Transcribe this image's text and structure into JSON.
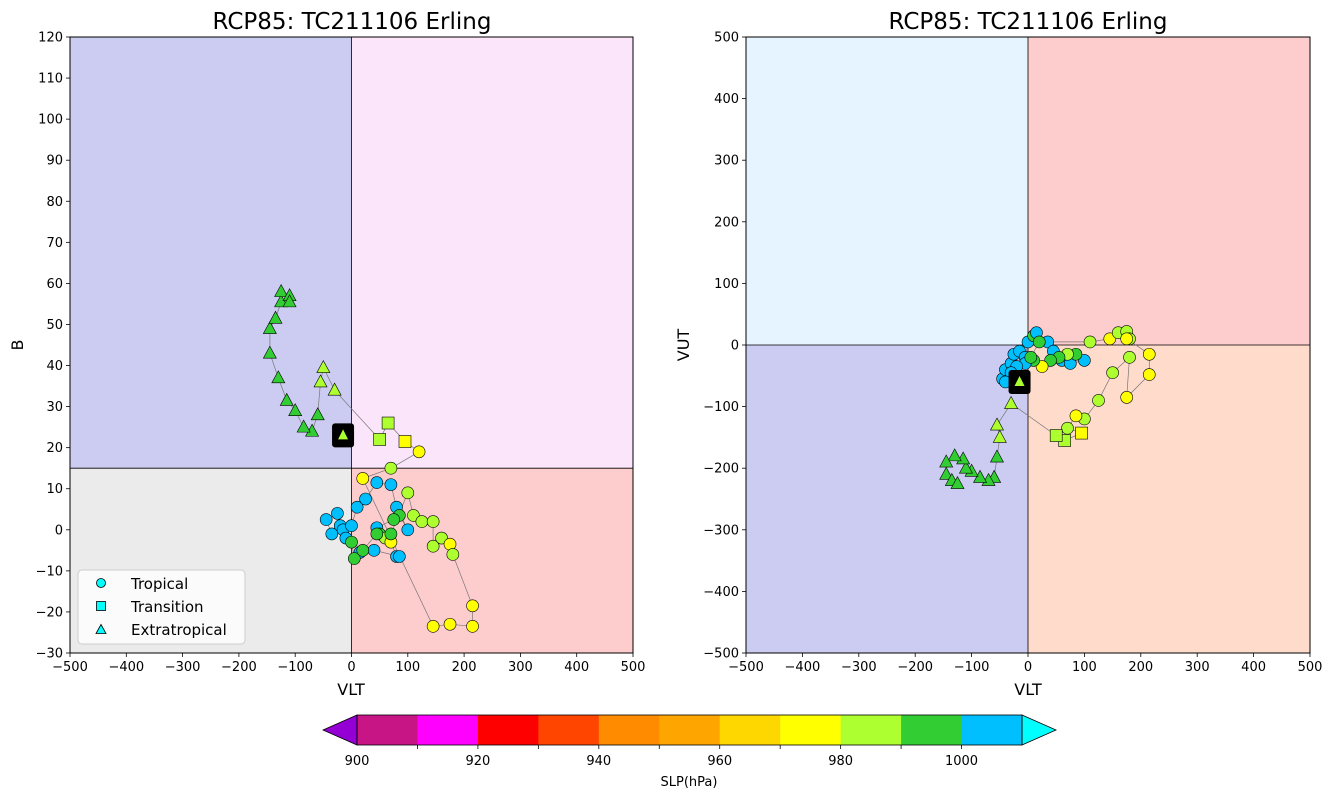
{
  "colorbar": {
    "label": "SLP(hPa)",
    "levels": [
      900,
      910,
      920,
      930,
      940,
      950,
      960,
      970,
      980,
      990,
      1000,
      1010
    ],
    "colors": [
      "#c71585",
      "#ff00ff",
      "#ff0000",
      "#ff4500",
      "#ff8c00",
      "#ffa500",
      "#ffd700",
      "#ffff00",
      "#adff2f",
      "#32cd32",
      "#00bfff"
    ],
    "under_color": "#9400d3",
    "over_color": "#00ffff",
    "tick_labels": [
      "900",
      "920",
      "940",
      "960",
      "980",
      "1000"
    ],
    "tick_values": [
      900,
      920,
      940,
      960,
      980,
      1000
    ]
  },
  "marker": {
    "label_color": "#adff2f"
  },
  "chart_data": [
    {
      "type": "scatter",
      "title": "RCP85: TC211106 Erling",
      "xlabel": "VLT",
      "ylabel": "B",
      "xlim": [
        -500,
        500
      ],
      "ylim": [
        -30,
        120
      ],
      "xticks": [
        -500,
        -400,
        -300,
        -200,
        -100,
        0,
        100,
        200,
        300,
        400,
        500
      ],
      "yticks": [
        -30,
        -20,
        -10,
        0,
        10,
        20,
        30,
        40,
        50,
        60,
        70,
        80,
        90,
        100,
        110,
        120
      ],
      "split": {
        "x": 0,
        "y": 15
      },
      "quadrants": {
        "upper_left": "#ccccf2",
        "upper_right": "#fbe5fa",
        "lower_left": "#ebebeb",
        "lower_right": "#fdcccc"
      },
      "grid": false,
      "legend": {
        "position": "lower-left",
        "entries": [
          {
            "label": "Tropical",
            "marker": "circle"
          },
          {
            "label": "Transition",
            "marker": "square"
          },
          {
            "label": "Extratropical",
            "marker": "triangle"
          }
        ]
      },
      "current_point": {
        "x": -15,
        "y": 23
      },
      "track": [
        {
          "x": -45,
          "y": 2.5,
          "slp": 1002,
          "phase": "tropical"
        },
        {
          "x": -35,
          "y": -1,
          "slp": 1002,
          "phase": "tropical"
        },
        {
          "x": -20,
          "y": 1,
          "slp": 1002,
          "phase": "tropical"
        },
        {
          "x": -25,
          "y": 4,
          "slp": 1002,
          "phase": "tropical"
        },
        {
          "x": -15,
          "y": 0,
          "slp": 1002,
          "phase": "tropical"
        },
        {
          "x": -10,
          "y": -2,
          "slp": 1001,
          "phase": "tropical"
        },
        {
          "x": 0,
          "y": 1,
          "slp": 1001,
          "phase": "tropical"
        },
        {
          "x": 10,
          "y": 5.5,
          "slp": 1001,
          "phase": "tropical"
        },
        {
          "x": 25,
          "y": 7.5,
          "slp": 1001,
          "phase": "tropical"
        },
        {
          "x": 45,
          "y": 11.5,
          "slp": 1001,
          "phase": "tropical"
        },
        {
          "x": 70,
          "y": 11,
          "slp": 1001,
          "phase": "tropical"
        },
        {
          "x": 80,
          "y": 5.5,
          "slp": 1001,
          "phase": "tropical"
        },
        {
          "x": 100,
          "y": 0,
          "slp": 1001,
          "phase": "tropical"
        },
        {
          "x": 85,
          "y": 3.5,
          "slp": 995,
          "phase": "tropical"
        },
        {
          "x": 75,
          "y": 2.5,
          "slp": 995,
          "phase": "tropical"
        },
        {
          "x": 45,
          "y": 0.5,
          "slp": 1001,
          "phase": "tropical"
        },
        {
          "x": 50,
          "y": -1,
          "slp": 995,
          "phase": "tropical"
        },
        {
          "x": 60,
          "y": -2,
          "slp": 985,
          "phase": "tropical"
        },
        {
          "x": 70,
          "y": -3,
          "slp": 975,
          "phase": "tropical"
        },
        {
          "x": 80,
          "y": -6.5,
          "slp": 1001,
          "phase": "tropical"
        },
        {
          "x": 85,
          "y": -6.5,
          "slp": 1001,
          "phase": "tropical"
        },
        {
          "x": 40,
          "y": -5,
          "slp": 1001,
          "phase": "tropical"
        },
        {
          "x": 15,
          "y": -5.5,
          "slp": 1001,
          "phase": "tropical"
        },
        {
          "x": 5,
          "y": -7,
          "slp": 995,
          "phase": "tropical"
        },
        {
          "x": 0,
          "y": -3,
          "slp": 995,
          "phase": "tropical"
        },
        {
          "x": 20,
          "y": -5,
          "slp": 995,
          "phase": "tropical"
        },
        {
          "x": 45,
          "y": -1,
          "slp": 995,
          "phase": "tropical"
        },
        {
          "x": 70,
          "y": -1,
          "slp": 995,
          "phase": "tropical"
        },
        {
          "x": 100,
          "y": 9,
          "slp": 985,
          "phase": "tropical"
        },
        {
          "x": 110,
          "y": 3.5,
          "slp": 985,
          "phase": "tropical"
        },
        {
          "x": 125,
          "y": 2,
          "slp": 985,
          "phase": "tropical"
        },
        {
          "x": 145,
          "y": 2,
          "slp": 985,
          "phase": "tropical"
        },
        {
          "x": 145,
          "y": -4,
          "slp": 985,
          "phase": "tropical"
        },
        {
          "x": 160,
          "y": -2,
          "slp": 985,
          "phase": "tropical"
        },
        {
          "x": 175,
          "y": -3.5,
          "slp": 975,
          "phase": "tropical"
        },
        {
          "x": 180,
          "y": -6,
          "slp": 985,
          "phase": "tropical"
        },
        {
          "x": 215,
          "y": -18.5,
          "slp": 975,
          "phase": "tropical"
        },
        {
          "x": 215,
          "y": -23.5,
          "slp": 975,
          "phase": "tropical"
        },
        {
          "x": 175,
          "y": -23,
          "slp": 975,
          "phase": "tropical"
        },
        {
          "x": 145,
          "y": -23.5,
          "slp": 975,
          "phase": "tropical"
        },
        {
          "x": 20,
          "y": 12.5,
          "slp": 975,
          "phase": "tropical"
        },
        {
          "x": 70,
          "y": 15,
          "slp": 985,
          "phase": "tropical"
        },
        {
          "x": 120,
          "y": 19,
          "slp": 975,
          "phase": "tropical"
        },
        {
          "x": 95,
          "y": 21.5,
          "slp": 975,
          "phase": "transition"
        },
        {
          "x": 65,
          "y": 26,
          "slp": 985,
          "phase": "transition"
        },
        {
          "x": 50,
          "y": 22,
          "slp": 985,
          "phase": "transition"
        },
        {
          "x": -30,
          "y": 34,
          "slp": 985,
          "phase": "extratropical"
        },
        {
          "x": -50,
          "y": 39.5,
          "slp": 985,
          "phase": "extratropical"
        },
        {
          "x": -55,
          "y": 36,
          "slp": 985,
          "phase": "extratropical"
        },
        {
          "x": -60,
          "y": 28,
          "slp": 995,
          "phase": "extratropical"
        },
        {
          "x": -70,
          "y": 24,
          "slp": 995,
          "phase": "extratropical"
        },
        {
          "x": -85,
          "y": 25,
          "slp": 995,
          "phase": "extratropical"
        },
        {
          "x": -100,
          "y": 29,
          "slp": 995,
          "phase": "extratropical"
        },
        {
          "x": -115,
          "y": 31.5,
          "slp": 995,
          "phase": "extratropical"
        },
        {
          "x": -130,
          "y": 37,
          "slp": 995,
          "phase": "extratropical"
        },
        {
          "x": -145,
          "y": 43,
          "slp": 995,
          "phase": "extratropical"
        },
        {
          "x": -145,
          "y": 49,
          "slp": 995,
          "phase": "extratropical"
        },
        {
          "x": -135,
          "y": 51.5,
          "slp": 995,
          "phase": "extratropical"
        },
        {
          "x": -125,
          "y": 55.5,
          "slp": 995,
          "phase": "extratropical"
        },
        {
          "x": -125,
          "y": 58,
          "slp": 995,
          "phase": "extratropical"
        },
        {
          "x": -110,
          "y": 57,
          "slp": 995,
          "phase": "extratropical"
        },
        {
          "x": -110,
          "y": 55.5,
          "slp": 995,
          "phase": "extratropical"
        }
      ]
    },
    {
      "type": "scatter",
      "title": "RCP85: TC211106 Erling",
      "xlabel": "VLT",
      "ylabel": "VUT",
      "xlim": [
        -500,
        500
      ],
      "ylim": [
        -500,
        500
      ],
      "xticks": [
        -500,
        -400,
        -300,
        -200,
        -100,
        0,
        100,
        200,
        300,
        400,
        500
      ],
      "yticks": [
        -500,
        -400,
        -300,
        -200,
        -100,
        0,
        100,
        200,
        300,
        400,
        500
      ],
      "split": {
        "x": 0,
        "y": 0
      },
      "quadrants": {
        "upper_left": "#e5f4fe",
        "upper_right": "#fdcccc",
        "lower_left": "#ccccf2",
        "lower_right": "#fedbcb"
      },
      "grid": false,
      "current_point": {
        "x": -15,
        "y": -60
      },
      "track": [
        {
          "x": -45,
          "y": -55,
          "slp": 1002,
          "phase": "tropical"
        },
        {
          "x": -40,
          "y": -40,
          "slp": 1002,
          "phase": "tropical"
        },
        {
          "x": -30,
          "y": -30,
          "slp": 1002,
          "phase": "tropical"
        },
        {
          "x": -25,
          "y": -15,
          "slp": 1002,
          "phase": "tropical"
        },
        {
          "x": -15,
          "y": -10,
          "slp": 1001,
          "phase": "tropical"
        },
        {
          "x": -5,
          "y": -20,
          "slp": 1001,
          "phase": "tropical"
        },
        {
          "x": 0,
          "y": 5,
          "slp": 1001,
          "phase": "tropical"
        },
        {
          "x": 10,
          "y": 15,
          "slp": 995,
          "phase": "tropical"
        },
        {
          "x": 15,
          "y": 20,
          "slp": 1001,
          "phase": "tropical"
        },
        {
          "x": 35,
          "y": 5,
          "slp": 1001,
          "phase": "tropical"
        },
        {
          "x": 45,
          "y": -10,
          "slp": 1001,
          "phase": "tropical"
        },
        {
          "x": 60,
          "y": -25,
          "slp": 1001,
          "phase": "tropical"
        },
        {
          "x": 75,
          "y": -30,
          "slp": 1001,
          "phase": "tropical"
        },
        {
          "x": 100,
          "y": -25,
          "slp": 1001,
          "phase": "tropical"
        },
        {
          "x": 85,
          "y": -15,
          "slp": 995,
          "phase": "tropical"
        },
        {
          "x": 70,
          "y": -15,
          "slp": 985,
          "phase": "tropical"
        },
        {
          "x": 55,
          "y": -20,
          "slp": 995,
          "phase": "tropical"
        },
        {
          "x": 40,
          "y": -25,
          "slp": 995,
          "phase": "tropical"
        },
        {
          "x": 25,
          "y": -35,
          "slp": 975,
          "phase": "tropical"
        },
        {
          "x": 10,
          "y": -25,
          "slp": 995,
          "phase": "tropical"
        },
        {
          "x": -5,
          "y": -30,
          "slp": 1001,
          "phase": "tropical"
        },
        {
          "x": -20,
          "y": -35,
          "slp": 1001,
          "phase": "tropical"
        },
        {
          "x": -30,
          "y": -45,
          "slp": 1001,
          "phase": "tropical"
        },
        {
          "x": -40,
          "y": -60,
          "slp": 1001,
          "phase": "tropical"
        },
        {
          "x": 5,
          "y": -20,
          "slp": 995,
          "phase": "tropical"
        },
        {
          "x": 20,
          "y": 5,
          "slp": 995,
          "phase": "tropical"
        },
        {
          "x": 110,
          "y": 5,
          "slp": 985,
          "phase": "tropical"
        },
        {
          "x": 145,
          "y": 10,
          "slp": 975,
          "phase": "tropical"
        },
        {
          "x": 160,
          "y": 20,
          "slp": 985,
          "phase": "tropical"
        },
        {
          "x": 175,
          "y": 22,
          "slp": 985,
          "phase": "tropical"
        },
        {
          "x": 180,
          "y": 10,
          "slp": 985,
          "phase": "tropical"
        },
        {
          "x": 175,
          "y": 10,
          "slp": 975,
          "phase": "tropical"
        },
        {
          "x": 215,
          "y": -15,
          "slp": 975,
          "phase": "tropical"
        },
        {
          "x": 215,
          "y": -48,
          "slp": 975,
          "phase": "tropical"
        },
        {
          "x": 175,
          "y": -85,
          "slp": 975,
          "phase": "tropical"
        },
        {
          "x": 180,
          "y": -20,
          "slp": 985,
          "phase": "tropical"
        },
        {
          "x": 150,
          "y": -45,
          "slp": 985,
          "phase": "tropical"
        },
        {
          "x": 125,
          "y": -90,
          "slp": 985,
          "phase": "tropical"
        },
        {
          "x": 100,
          "y": -120,
          "slp": 985,
          "phase": "tropical"
        },
        {
          "x": 85,
          "y": -115,
          "slp": 975,
          "phase": "tropical"
        },
        {
          "x": 70,
          "y": -135,
          "slp": 985,
          "phase": "tropical"
        },
        {
          "x": 95,
          "y": -143,
          "slp": 975,
          "phase": "transition"
        },
        {
          "x": 65,
          "y": -155,
          "slp": 985,
          "phase": "transition"
        },
        {
          "x": 50,
          "y": -147,
          "slp": 985,
          "phase": "transition"
        },
        {
          "x": -30,
          "y": -95,
          "slp": 985,
          "phase": "extratropical"
        },
        {
          "x": -55,
          "y": -130,
          "slp": 985,
          "phase": "extratropical"
        },
        {
          "x": -50,
          "y": -150,
          "slp": 985,
          "phase": "extratropical"
        },
        {
          "x": -55,
          "y": -182,
          "slp": 995,
          "phase": "extratropical"
        },
        {
          "x": -60,
          "y": -215,
          "slp": 995,
          "phase": "extratropical"
        },
        {
          "x": -70,
          "y": -220,
          "slp": 995,
          "phase": "extratropical"
        },
        {
          "x": -85,
          "y": -215,
          "slp": 995,
          "phase": "extratropical"
        },
        {
          "x": -100,
          "y": -205,
          "slp": 995,
          "phase": "extratropical"
        },
        {
          "x": -110,
          "y": -200,
          "slp": 995,
          "phase": "extratropical"
        },
        {
          "x": -115,
          "y": -185,
          "slp": 995,
          "phase": "extratropical"
        },
        {
          "x": -130,
          "y": -180,
          "slp": 995,
          "phase": "extratropical"
        },
        {
          "x": -145,
          "y": -190,
          "slp": 995,
          "phase": "extratropical"
        },
        {
          "x": -145,
          "y": -210,
          "slp": 995,
          "phase": "extratropical"
        },
        {
          "x": -135,
          "y": -220,
          "slp": 995,
          "phase": "extratropical"
        },
        {
          "x": -125,
          "y": -225,
          "slp": 995,
          "phase": "extratropical"
        }
      ]
    }
  ]
}
